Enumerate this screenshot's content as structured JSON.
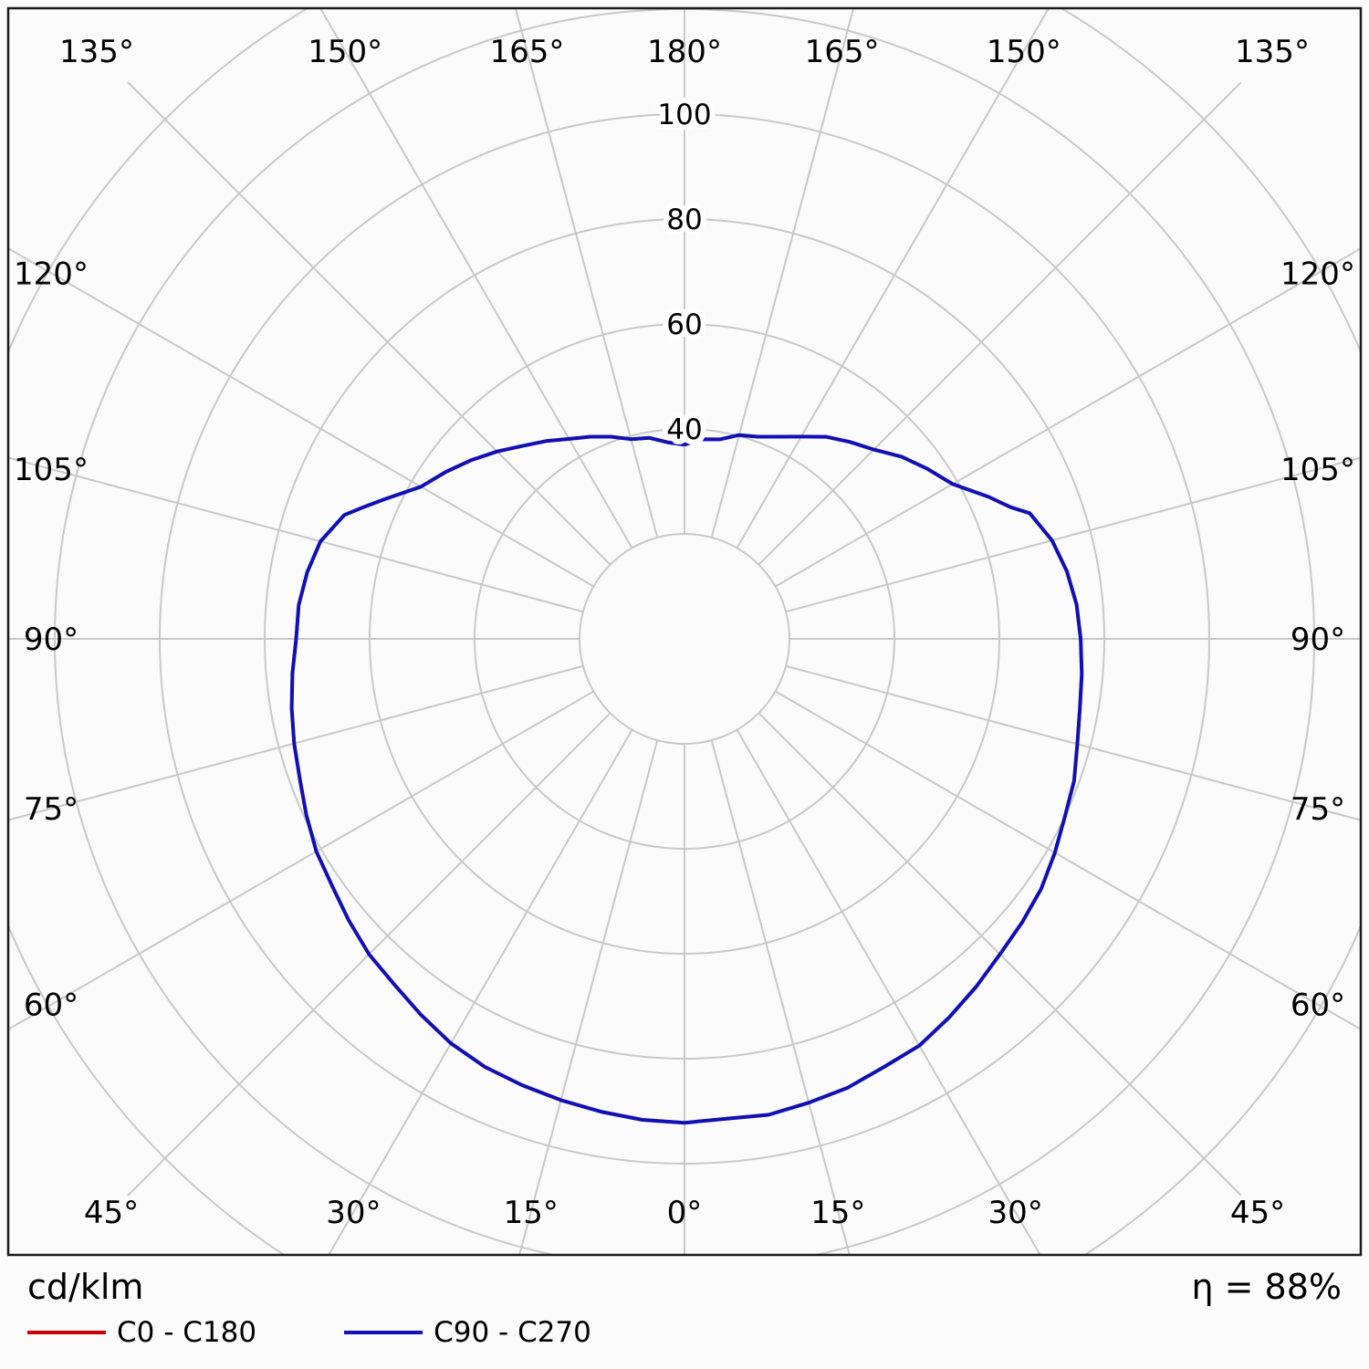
{
  "chart_data": {
    "type": "polar",
    "title": "",
    "unit_label": "cd/klm",
    "efficiency_label": "η = 88%",
    "angle_step_deg": 15,
    "angle_labels": [
      "0°",
      "15°",
      "30°",
      "45°",
      "60°",
      "75°",
      "90°",
      "105°",
      "120°",
      "135°",
      "150°",
      "165°",
      "180°"
    ],
    "radial_tick_values": [
      40,
      60,
      80,
      100
    ],
    "radial_gridline_values": [
      20,
      40,
      60,
      80,
      100,
      120,
      140
    ],
    "radial_axis_note": "values in cd/klm, gamma angle 0° at nadir (bottom), 180° at top",
    "colors": {
      "grid": "#c8c8c8",
      "frame": "#1a1a1a",
      "text": "#000000",
      "c0_c180": "#cc0000",
      "c90_c270": "#1010b4"
    },
    "legend_position": "bottom-left",
    "series": [
      {
        "name": "C0 - C180",
        "color": "#cc0000",
        "note": "coincides with C90 - C270 curve (hidden beneath it)",
        "points": [
          [
            -180,
            37.0
          ],
          [
            -175,
            37.6
          ],
          [
            -170,
            38.9
          ],
          [
            -165,
            39.4
          ],
          [
            -160,
            41.0
          ],
          [
            -155,
            42.5
          ],
          [
            -150,
            44.0
          ],
          [
            -145,
            46.0
          ],
          [
            -140,
            48.0
          ],
          [
            -135,
            50.5
          ],
          [
            -130,
            53.0
          ],
          [
            -125,
            55.5
          ],
          [
            -120,
            58.0
          ],
          [
            -115,
            63.0
          ],
          [
            -112,
            66.5
          ],
          [
            -110,
            69.0
          ],
          [
            -105,
            71.8
          ],
          [
            -100,
            73.0
          ],
          [
            -95,
            73.8
          ],
          [
            -90,
            74.0
          ],
          [
            -85,
            75.0
          ],
          [
            -80,
            76.0
          ],
          [
            -75,
            77.0
          ],
          [
            -70,
            78.0
          ],
          [
            -65,
            79.5
          ],
          [
            -60,
            81.0
          ],
          [
            -55,
            82.0
          ],
          [
            -50,
            83.5
          ],
          [
            -45,
            85.0
          ],
          [
            -40,
            86.0
          ],
          [
            -35,
            87.5
          ],
          [
            -30,
            89.0
          ],
          [
            -25,
            90.0
          ],
          [
            -20,
            90.5
          ],
          [
            -15,
            91.0
          ],
          [
            -10,
            91.5
          ],
          [
            -5,
            92.0
          ],
          [
            0,
            92.2
          ],
          [
            5,
            91.8
          ],
          [
            10,
            92.1
          ],
          [
            15,
            91.5
          ],
          [
            20,
            91.0
          ],
          [
            25,
            90.0
          ],
          [
            30,
            89.5
          ],
          [
            35,
            88.0
          ],
          [
            40,
            86.5
          ],
          [
            45,
            85.0
          ],
          [
            50,
            84.0
          ],
          [
            55,
            83.0
          ],
          [
            60,
            81.5
          ],
          [
            65,
            80.0
          ],
          [
            70,
            79.0
          ],
          [
            75,
            77.5
          ],
          [
            80,
            76.5
          ],
          [
            85,
            76.0
          ],
          [
            90,
            75.5
          ],
          [
            95,
            75.0
          ],
          [
            100,
            74.0
          ],
          [
            105,
            72.5
          ],
          [
            110,
            70.0
          ],
          [
            112,
            67.0
          ],
          [
            115,
            64.0
          ],
          [
            120,
            59.0
          ],
          [
            125,
            56.5
          ],
          [
            130,
            54.0
          ],
          [
            135,
            51.0
          ],
          [
            140,
            49.0
          ],
          [
            145,
            47.0
          ],
          [
            150,
            44.5
          ],
          [
            155,
            42.5
          ],
          [
            160,
            41.0
          ],
          [
            165,
            40.2
          ],
          [
            170,
            38.6
          ],
          [
            175,
            38.2
          ],
          [
            180,
            37.0
          ]
        ]
      },
      {
        "name": "C90 - C270",
        "color": "#1010b4",
        "note": "gamma in degrees (negative = C270 half, positive = C90 half), value in cd/klm",
        "points": [
          [
            -180,
            37.0
          ],
          [
            -175,
            37.6
          ],
          [
            -170,
            38.9
          ],
          [
            -165,
            39.4
          ],
          [
            -160,
            41.0
          ],
          [
            -155,
            42.5
          ],
          [
            -150,
            44.0
          ],
          [
            -145,
            46.0
          ],
          [
            -140,
            48.0
          ],
          [
            -135,
            50.5
          ],
          [
            -130,
            53.0
          ],
          [
            -125,
            55.5
          ],
          [
            -120,
            58.0
          ],
          [
            -115,
            63.0
          ],
          [
            -112,
            66.5
          ],
          [
            -110,
            69.0
          ],
          [
            -105,
            71.8
          ],
          [
            -100,
            73.0
          ],
          [
            -95,
            73.8
          ],
          [
            -90,
            74.0
          ],
          [
            -85,
            75.0
          ],
          [
            -80,
            76.0
          ],
          [
            -75,
            77.0
          ],
          [
            -70,
            78.0
          ],
          [
            -65,
            79.5
          ],
          [
            -60,
            81.0
          ],
          [
            -55,
            82.0
          ],
          [
            -50,
            83.5
          ],
          [
            -45,
            85.0
          ],
          [
            -40,
            86.0
          ],
          [
            -35,
            87.5
          ],
          [
            -30,
            89.0
          ],
          [
            -25,
            90.0
          ],
          [
            -20,
            90.5
          ],
          [
            -15,
            91.0
          ],
          [
            -10,
            91.5
          ],
          [
            -5,
            92.0
          ],
          [
            0,
            92.2
          ],
          [
            5,
            91.8
          ],
          [
            10,
            92.1
          ],
          [
            15,
            91.5
          ],
          [
            20,
            91.0
          ],
          [
            25,
            90.0
          ],
          [
            30,
            89.5
          ],
          [
            35,
            88.0
          ],
          [
            40,
            86.5
          ],
          [
            45,
            85.0
          ],
          [
            50,
            84.0
          ],
          [
            55,
            83.0
          ],
          [
            60,
            81.5
          ],
          [
            65,
            80.0
          ],
          [
            70,
            79.0
          ],
          [
            75,
            77.5
          ],
          [
            80,
            76.5
          ],
          [
            85,
            76.0
          ],
          [
            90,
            75.5
          ],
          [
            95,
            75.0
          ],
          [
            100,
            74.0
          ],
          [
            105,
            72.5
          ],
          [
            110,
            70.0
          ],
          [
            112,
            67.0
          ],
          [
            115,
            64.0
          ],
          [
            120,
            59.0
          ],
          [
            125,
            56.5
          ],
          [
            130,
            54.0
          ],
          [
            135,
            51.0
          ],
          [
            140,
            49.0
          ],
          [
            145,
            47.0
          ],
          [
            150,
            44.5
          ],
          [
            155,
            42.5
          ],
          [
            160,
            41.0
          ],
          [
            165,
            40.2
          ],
          [
            170,
            38.6
          ],
          [
            175,
            38.2
          ],
          [
            180,
            37.0
          ]
        ]
      }
    ]
  }
}
